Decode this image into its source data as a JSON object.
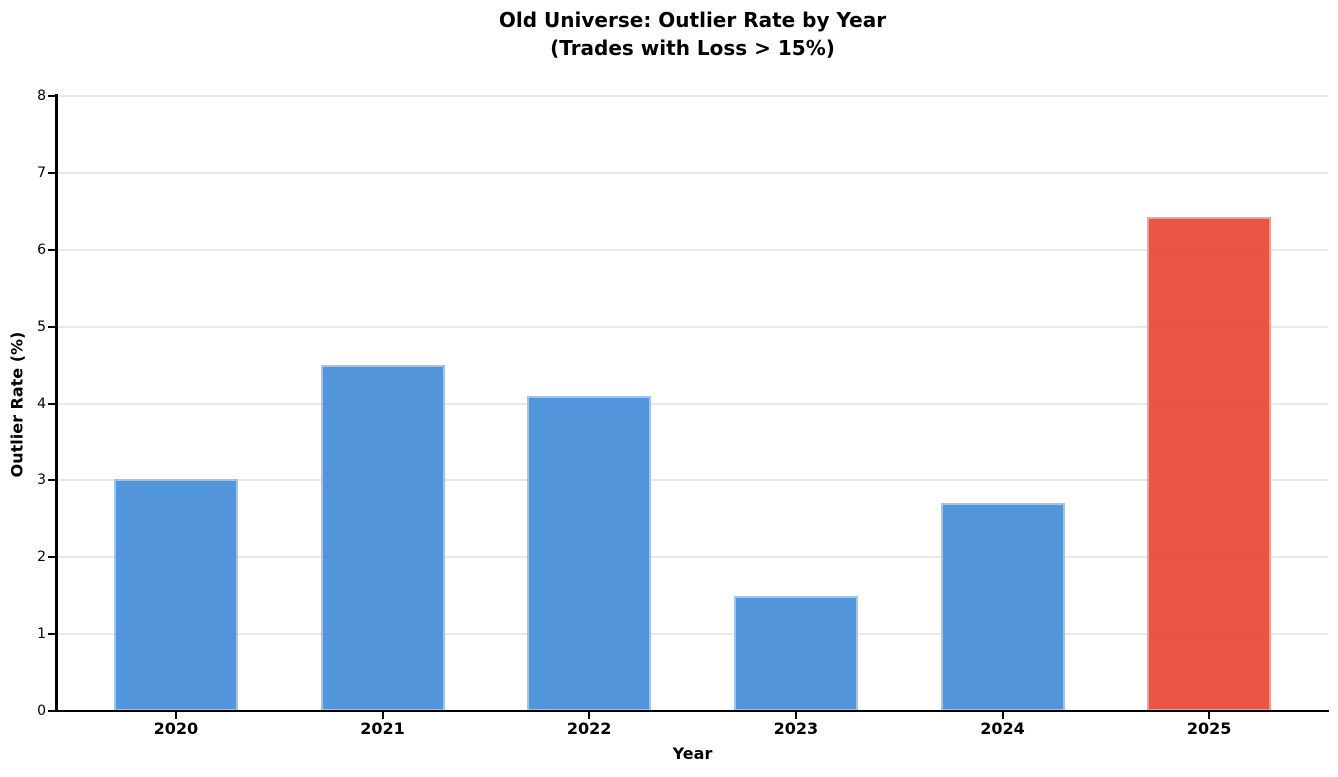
{
  "chart_data": {
    "type": "bar",
    "title": "Old Universe: Outlier Rate by Year",
    "subtitle": "(Trades with Loss > 15%)",
    "xlabel": "Year",
    "ylabel": "Outlier Rate (%)",
    "categories": [
      "2020",
      "2021",
      "2022",
      "2023",
      "2024",
      "2025"
    ],
    "values": [
      3.02,
      4.5,
      4.1,
      1.5,
      2.7,
      6.43
    ],
    "bar_colors": [
      "#4a90d9",
      "#4a90d9",
      "#4a90d9",
      "#4a90d9",
      "#4a90d9",
      "#e74c3c"
    ],
    "highlight_category": "2025",
    "highlight_color": "#e74c3c",
    "default_color": "#4a90d9",
    "ylim": [
      0,
      8
    ],
    "yticks": [
      0,
      1,
      2,
      3,
      4,
      5,
      6,
      7,
      8
    ],
    "grid": true,
    "grid_axis": "y",
    "legend": "none"
  }
}
